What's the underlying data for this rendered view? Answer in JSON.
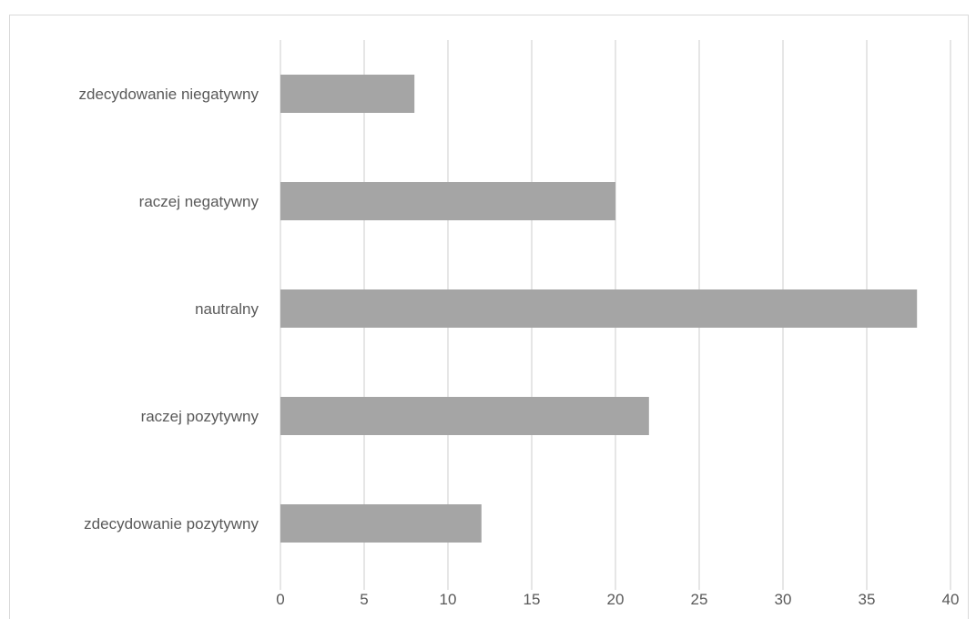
{
  "chart_data": {
    "type": "bar",
    "orientation": "horizontal",
    "title": "",
    "xlabel": "",
    "ylabel": "",
    "categories": [
      "zdecydowanie niegatywny",
      "raczej negatywny",
      "nautralny",
      "raczej pozytywny",
      "zdecydowanie pozytywny"
    ],
    "values": [
      8,
      20,
      38,
      22,
      12
    ],
    "xlim": [
      0,
      40
    ],
    "xticks": [
      "0",
      "5",
      "10",
      "15",
      "20",
      "25",
      "30",
      "35",
      "40"
    ],
    "grid": true,
    "legend": "none",
    "colors": {
      "bar": "#a5a5a5",
      "grid": "#d9d9d9",
      "text": "#595959",
      "border": "#d9d9d9"
    }
  }
}
